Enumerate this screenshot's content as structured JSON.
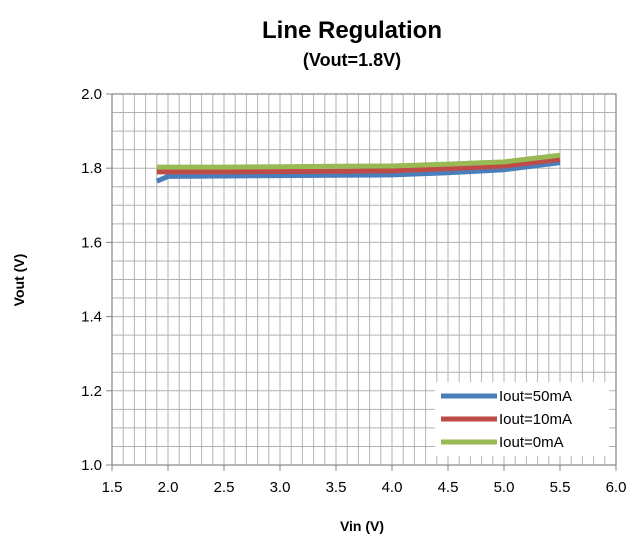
{
  "chart_data": {
    "type": "line",
    "title": "Line Regulation",
    "subtitle": "(Vout=1.8V)",
    "xlabel": "Vin (V)",
    "ylabel": "Vout (V)",
    "xlim": [
      1.5,
      6.0
    ],
    "ylim": [
      1.0,
      2.0
    ],
    "x_ticks": [
      "1.5",
      "2.0",
      "2.5",
      "3.0",
      "3.5",
      "4.0",
      "4.5",
      "5.0",
      "5.5",
      "6.0"
    ],
    "y_ticks": [
      "1.0",
      "1.2",
      "1.4",
      "1.6",
      "1.8",
      "2.0"
    ],
    "grid": true,
    "legend_position": "bottom-right",
    "series": [
      {
        "name": "Iout=50mA",
        "color": "#4a7ebb",
        "x": [
          1.9,
          2.0,
          2.5,
          3.0,
          3.5,
          4.0,
          4.5,
          5.0,
          5.5
        ],
        "y": [
          1.765,
          1.778,
          1.779,
          1.78,
          1.781,
          1.782,
          1.788,
          1.796,
          1.815
        ]
      },
      {
        "name": "Iout=10mA",
        "color": "#be4b48",
        "x": [
          1.9,
          2.0,
          2.5,
          3.0,
          3.5,
          4.0,
          4.5,
          5.0,
          5.5
        ],
        "y": [
          1.79,
          1.79,
          1.79,
          1.791,
          1.792,
          1.793,
          1.799,
          1.806,
          1.824
        ]
      },
      {
        "name": "Iout=0mA",
        "color": "#98b954",
        "x": [
          1.9,
          2.0,
          2.5,
          3.0,
          3.5,
          4.0,
          4.5,
          5.0,
          5.5
        ],
        "y": [
          1.803,
          1.803,
          1.803,
          1.804,
          1.805,
          1.806,
          1.811,
          1.817,
          1.835
        ]
      }
    ]
  }
}
